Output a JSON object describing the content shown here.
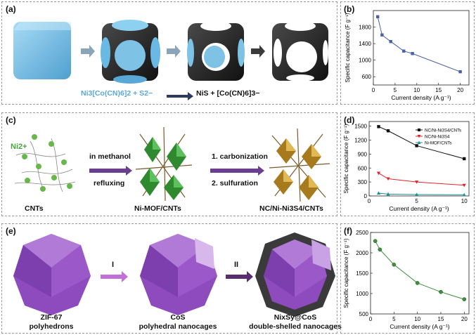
{
  "panels": {
    "a": {
      "label": "(a)",
      "reaction_left": "Ni3[Co(CN)6]2 + S2−",
      "reaction_right": "NiS + [Co(CN)6]3−"
    },
    "c": {
      "label": "(c)",
      "ion": "Ni2+",
      "arrow1_top": "in methanol",
      "arrow1_bottom": "refluxing",
      "arrow2_top": "1. carbonization",
      "arrow2_bottom": "2. sulfuration",
      "caption1": "CNTs",
      "caption2": "Ni-MOF/CNTs",
      "caption3": "NC/Ni-Ni3S4/CNTs"
    },
    "e": {
      "label": "(e)",
      "step1": "I",
      "step2": "II",
      "caption1_line1": "ZIF-67",
      "caption1_line2": "polyhedrons",
      "caption2_line1": "CoS",
      "caption2_line2": "polyhedral nanocages",
      "caption3_line1": "NixSy@CoS",
      "caption3_line2": "double-shelled nanocages"
    }
  },
  "colors": {
    "cube_blue": "#7ec3e6",
    "dark_cube": "#2a2a2a",
    "mof_green": "#3a9a3a",
    "nc_gold": "#c9972e",
    "zif_purple": "#9b55c7",
    "arrow_purple": "#6b3f8f",
    "chart_blue": "#4a5fa8",
    "chart_green": "#3f8f3f"
  },
  "chart_data": [
    {
      "label": "(b)",
      "type": "line",
      "xlabel": "Current density (A g⁻¹)",
      "ylabel": "Specific capacitance (F g⁻¹)",
      "xlim": [
        0,
        22
      ],
      "ylim": [
        400,
        2200
      ],
      "xticks": [
        0,
        5,
        10,
        15,
        20
      ],
      "yticks": [
        600,
        1000,
        1400,
        1800
      ],
      "series": [
        {
          "x": [
            1,
            2,
            4,
            7,
            9,
            20
          ],
          "y": [
            2050,
            1610,
            1450,
            1220,
            1160,
            720
          ]
        }
      ]
    },
    {
      "label": "(d)",
      "type": "line",
      "xlabel": "Current density (A g⁻¹)",
      "ylabel": "Specific capacitance (F g⁻¹)",
      "xlim": [
        0,
        10.5
      ],
      "ylim": [
        0,
        1600
      ],
      "xticks": [
        0,
        5,
        10
      ],
      "yticks": [
        0,
        300,
        600,
        900,
        1200,
        1500
      ],
      "legend_position": "top-right",
      "series": [
        {
          "name": "NC/Ni-Ni3S4/CNTs",
          "x": [
            1,
            2,
            5,
            10
          ],
          "y": [
            1490,
            1400,
            1080,
            800
          ]
        },
        {
          "name": "NC/Ni-Ni3S4",
          "x": [
            1,
            2,
            5,
            10
          ],
          "y": [
            490,
            370,
            300,
            230
          ]
        },
        {
          "name": "Ni-MOF/CNTs",
          "x": [
            1,
            2,
            5,
            10
          ],
          "y": [
            60,
            40,
            30,
            25
          ]
        }
      ]
    },
    {
      "label": "(f)",
      "type": "line",
      "xlabel": "Current density (A g⁻¹)",
      "ylabel": "Specific capacitance (F g⁻¹)",
      "xlim": [
        0,
        21
      ],
      "ylim": [
        500,
        2500
      ],
      "xticks": [
        0,
        5,
        10,
        15,
        20
      ],
      "yticks": [
        500,
        1000,
        1500,
        2000,
        2500
      ],
      "series": [
        {
          "x": [
            1,
            2,
            5,
            10,
            15,
            20
          ],
          "y": [
            2290,
            2080,
            1710,
            1260,
            1040,
            860
          ]
        }
      ]
    }
  ]
}
